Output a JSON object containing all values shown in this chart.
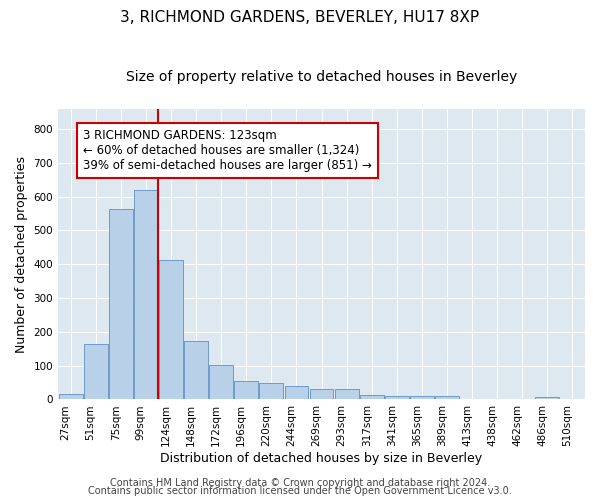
{
  "title": "3, RICHMOND GARDENS, BEVERLEY, HU17 8XP",
  "subtitle": "Size of property relative to detached houses in Beverley",
  "xlabel": "Distribution of detached houses by size in Beverley",
  "ylabel": "Number of detached properties",
  "bar_values": [
    17,
    165,
    563,
    620,
    413,
    172,
    103,
    54,
    50,
    41,
    31,
    31,
    14,
    11,
    9,
    9,
    0,
    0,
    0,
    6
  ],
  "bin_labels": [
    "27sqm",
    "51sqm",
    "75sqm",
    "99sqm",
    "124sqm",
    "148sqm",
    "172sqm",
    "196sqm",
    "220sqm",
    "244sqm",
    "269sqm",
    "293sqm",
    "317sqm",
    "341sqm",
    "365sqm",
    "389sqm",
    "413sqm",
    "438sqm",
    "462sqm",
    "486sqm",
    "510sqm"
  ],
  "bar_color": "#b8d0e8",
  "bar_edge_color": "#6090c0",
  "vline_x_index": 4,
  "vline_color": "#cc0000",
  "annotation_text": "3 RICHMOND GARDENS: 123sqm\n← 60% of detached houses are smaller (1,324)\n39% of semi-detached houses are larger (851) →",
  "annotation_box_color": "#ffffff",
  "annotation_box_edge_color": "#cc0000",
  "ylim": [
    0,
    860
  ],
  "yticks": [
    0,
    100,
    200,
    300,
    400,
    500,
    600,
    700,
    800
  ],
  "footer_line1": "Contains HM Land Registry data © Crown copyright and database right 2024.",
  "footer_line2": "Contains public sector information licensed under the Open Government Licence v3.0.",
  "bg_color": "#ffffff",
  "plot_bg_color": "#dde8f0",
  "grid_color": "#ffffff",
  "title_fontsize": 11,
  "subtitle_fontsize": 10,
  "label_fontsize": 9,
  "tick_fontsize": 7.5,
  "footer_fontsize": 7,
  "ann_fontsize": 8.5
}
